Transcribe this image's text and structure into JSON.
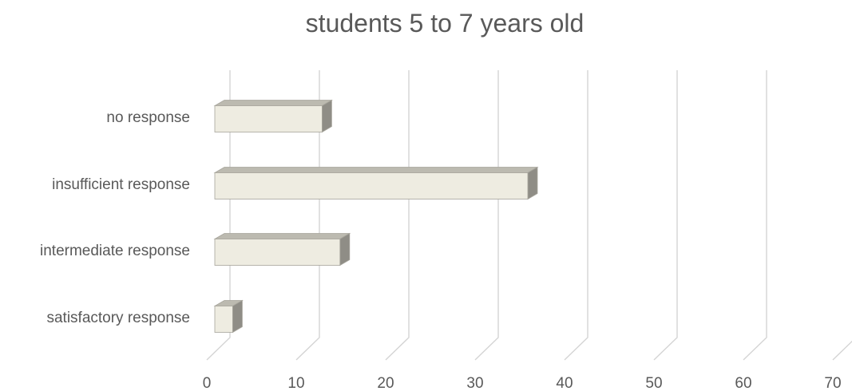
{
  "chart_data": {
    "type": "bar",
    "orientation": "horizontal",
    "style": "3d",
    "title": "students 5 to 7 years old",
    "xlabel": "",
    "ylabel": "",
    "categories": [
      "no response",
      "insufficient response",
      "intermediate response",
      "satisfactory response"
    ],
    "values": [
      12,
      35,
      14,
      2
    ],
    "xlim": [
      0,
      70
    ],
    "xticks": [
      "0",
      "10",
      "20",
      "30",
      "40",
      "50",
      "60",
      "70"
    ],
    "grid": true,
    "legend": "none",
    "colors": {
      "bar_front": "#eeece1",
      "bar_top": "#bcbab0",
      "bar_side": "#8f8d86",
      "bar_outline": "#a6a49b",
      "gridline": "#d4d4d4",
      "text": "#595959"
    }
  }
}
